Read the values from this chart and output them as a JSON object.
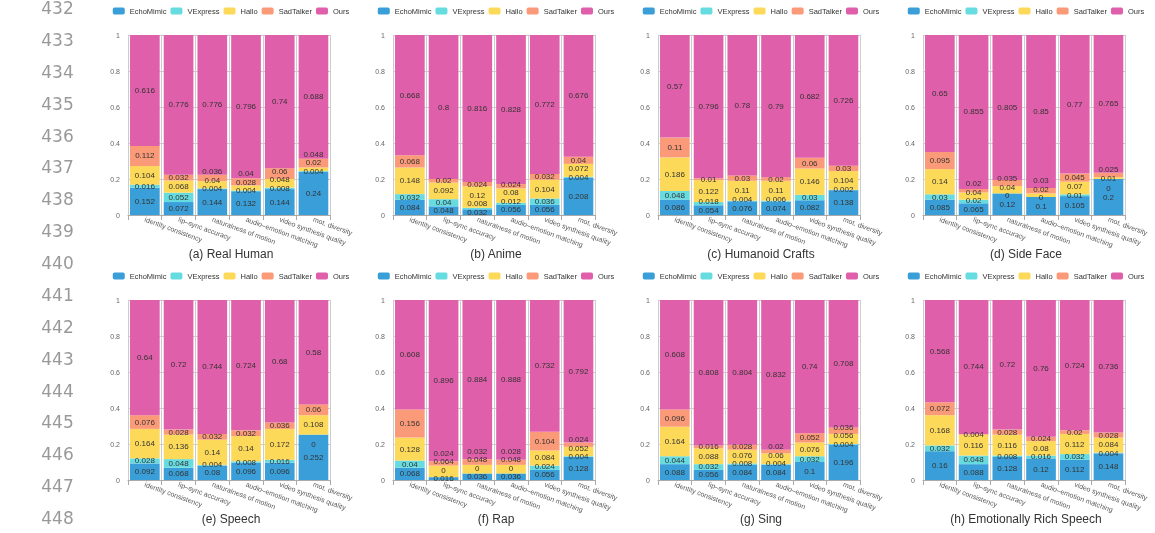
{
  "chart_data": [
    {
      "type": "bar",
      "title": "(a) Real Human",
      "annotations": [
        "432",
        "433",
        "434",
        "435",
        "436",
        "437",
        "438",
        "439",
        "440",
        "441",
        "442",
        "443",
        "444",
        "445",
        "446",
        "447",
        "448"
      ],
      "stacked": true,
      "data_labels": true,
      "grid": true,
      "legend": "top",
      "ylim": [
        0,
        1
      ],
      "yticks": [
        0,
        0.2,
        0.4,
        0.6,
        0.8,
        1
      ],
      "categories": [
        "identity consistency",
        "lip–sync accuracy",
        "naturalness of motion",
        "audio–emotion matching",
        "video synthesis quality",
        "mot. diversity"
      ],
      "series": [
        {
          "name": "EchoMimic",
          "color": "#3a9fd8",
          "values": [
            0.152,
            0.072,
            0.144,
            0.132,
            0.144,
            0.24
          ]
        },
        {
          "name": "VExpress",
          "color": "#66dbe0",
          "values": [
            0.016,
            0.052,
            0.004,
            0.004,
            0.008,
            0.004
          ]
        },
        {
          "name": "Hallo",
          "color": "#fdd95a",
          "values": [
            0.104,
            0.068,
            0.04,
            0.028,
            0.048,
            0.02
          ]
        },
        {
          "name": "SadTalker",
          "color": "#fb9a78",
          "values": [
            0.112,
            0.032,
            0.036,
            0.04,
            0.06,
            0.048
          ]
        },
        {
          "name": "Ours",
          "color": "#e05faa",
          "values": [
            0.616,
            0.776,
            0.776,
            0.796,
            0.74,
            0.688
          ]
        }
      ]
    },
    {
      "type": "bar",
      "title": "(b) Anime",
      "stacked": true,
      "data_labels": true,
      "grid": true,
      "legend": "top",
      "ylim": [
        0,
        1
      ],
      "yticks": [
        0,
        0.2,
        0.4,
        0.6,
        0.8,
        1
      ],
      "categories": [
        "identity consistency",
        "lip–sync accuracy",
        "naturalness of motion",
        "audio–emotion matching",
        "video synthesis quality",
        "mot. diversity"
      ],
      "series": [
        {
          "name": "EchoMimic",
          "color": "#3a9fd8",
          "values": [
            0.084,
            0.048,
            0.032,
            0.056,
            0.056,
            0.208
          ]
        },
        {
          "name": "VExpress",
          "color": "#66dbe0",
          "values": [
            0.032,
            0.04,
            0.008,
            0.012,
            0.036,
            0.004
          ]
        },
        {
          "name": "Hallo",
          "color": "#fdd95a",
          "values": [
            0.148,
            0.092,
            0.12,
            0.08,
            0.104,
            0.072
          ]
        },
        {
          "name": "SadTalker",
          "color": "#fb9a78",
          "values": [
            0.068,
            0.02,
            0.024,
            0.024,
            0.032,
            0.04
          ]
        },
        {
          "name": "Ours",
          "color": "#e05faa",
          "values": [
            0.668,
            0.8,
            0.816,
            0.828,
            0.772,
            0.676
          ]
        }
      ]
    },
    {
      "type": "bar",
      "title": "(c) Humanoid Crafts",
      "stacked": true,
      "data_labels": true,
      "grid": true,
      "legend": "top",
      "ylim": [
        0,
        1
      ],
      "yticks": [
        0,
        0.2,
        0.4,
        0.6,
        0.8,
        1
      ],
      "categories": [
        "identity consistency",
        "lip–sync accuracy",
        "naturalness of motion",
        "audio–emotion matching",
        "video synthesis quality",
        "mot. diversity"
      ],
      "series": [
        {
          "name": "EchoMimic",
          "color": "#3a9fd8",
          "values": [
            0.086,
            0.054,
            0.076,
            0.074,
            0.082,
            0.138
          ]
        },
        {
          "name": "VExpress",
          "color": "#66dbe0",
          "values": [
            0.048,
            0.018,
            0.004,
            0.006,
            0.03,
            0.002
          ]
        },
        {
          "name": "Hallo",
          "color": "#fdd95a",
          "values": [
            0.186,
            0.122,
            0.11,
            0.11,
            0.146,
            0.104
          ]
        },
        {
          "name": "SadTalker",
          "color": "#fb9a78",
          "values": [
            0.11,
            0.01,
            0.03,
            0.02,
            0.06,
            0.03
          ]
        },
        {
          "name": "Ours",
          "color": "#e05faa",
          "values": [
            0.57,
            0.796,
            0.78,
            0.79,
            0.682,
            0.726
          ]
        }
      ]
    },
    {
      "type": "bar",
      "title": "(d) Side Face",
      "stacked": true,
      "data_labels": true,
      "grid": true,
      "legend": "top",
      "ylim": [
        0,
        1
      ],
      "yticks": [
        0,
        0.2,
        0.4,
        0.6,
        0.8,
        1
      ],
      "categories": [
        "identity consistency",
        "lip–sync accuracy",
        "naturalness of motion",
        "audio–emotion matching",
        "video synthesis quality",
        "mot. diversity"
      ],
      "series": [
        {
          "name": "EchoMimic",
          "color": "#3a9fd8",
          "values": [
            0.085,
            0.065,
            0.12,
            0.1,
            0.105,
            0.2
          ]
        },
        {
          "name": "VExpress",
          "color": "#66dbe0",
          "values": [
            0.03,
            0.02,
            0,
            0,
            0.01,
            0
          ]
        },
        {
          "name": "Hallo",
          "color": "#fdd95a",
          "values": [
            0.14,
            0.04,
            0.04,
            0.02,
            0.07,
            0.01
          ]
        },
        {
          "name": "SadTalker",
          "color": "#fb9a78",
          "values": [
            0.095,
            0.02,
            0.035,
            0.03,
            0.045,
            0.025
          ]
        },
        {
          "name": "Ours",
          "color": "#e05faa",
          "values": [
            0.65,
            0.855,
            0.805,
            0.85,
            0.77,
            0.765
          ]
        }
      ]
    },
    {
      "type": "bar",
      "title": "(e) Speech",
      "stacked": true,
      "data_labels": true,
      "grid": true,
      "legend": "top",
      "ylim": [
        0,
        1
      ],
      "yticks": [
        0,
        0.2,
        0.4,
        0.6,
        0.8,
        1
      ],
      "categories": [
        "identity consistency",
        "lip–sync accuracy",
        "naturalness of motion",
        "audio–emotion matching",
        "video synthesis quality",
        "mot. diversity"
      ],
      "series": [
        {
          "name": "EchoMimic",
          "color": "#3a9fd8",
          "values": [
            0.092,
            0.068,
            0.08,
            0.096,
            0.096,
            0.252
          ]
        },
        {
          "name": "VExpress",
          "color": "#66dbe0",
          "values": [
            0.028,
            0.048,
            0.004,
            0.008,
            0.016,
            0
          ]
        },
        {
          "name": "Hallo",
          "color": "#fdd95a",
          "values": [
            0.164,
            0.136,
            0.14,
            0.14,
            0.172,
            0.108
          ]
        },
        {
          "name": "SadTalker",
          "color": "#fb9a78",
          "values": [
            0.076,
            0.028,
            0.032,
            0.032,
            0.036,
            0.06
          ]
        },
        {
          "name": "Ours",
          "color": "#e05faa",
          "values": [
            0.64,
            0.72,
            0.744,
            0.724,
            0.68,
            0.58
          ]
        }
      ]
    },
    {
      "type": "bar",
      "title": "(f) Rap",
      "stacked": true,
      "data_labels": true,
      "grid": true,
      "legend": "top",
      "ylim": [
        0,
        1
      ],
      "yticks": [
        0,
        0.2,
        0.4,
        0.6,
        0.8,
        1
      ],
      "categories": [
        "identity consistency",
        "lip–sync accuracy",
        "naturalness of motion",
        "audio–emotion matching",
        "video synthesis quality",
        "mot. diversity"
      ],
      "series": [
        {
          "name": "EchoMimic",
          "color": "#3a9fd8",
          "values": [
            0.068,
            0.016,
            0.036,
            0.036,
            0.056,
            0.128
          ]
        },
        {
          "name": "VExpress",
          "color": "#66dbe0",
          "values": [
            0.04,
            0,
            0,
            0,
            0.024,
            0.004
          ]
        },
        {
          "name": "Hallo",
          "color": "#fdd95a",
          "values": [
            0.128,
            0.064,
            0.048,
            0.048,
            0.084,
            0.052
          ]
        },
        {
          "name": "SadTalker",
          "color": "#fb9a78",
          "values": [
            0.156,
            0.024,
            0.032,
            0.028,
            0.104,
            0.024
          ]
        },
        {
          "name": "Ours",
          "color": "#e05faa",
          "values": [
            0.608,
            0.896,
            0.884,
            0.888,
            0.732,
            0.792
          ]
        }
      ]
    },
    {
      "type": "bar",
      "title": "(g) Sing",
      "stacked": true,
      "data_labels": true,
      "grid": true,
      "legend": "top",
      "ylim": [
        0,
        1
      ],
      "yticks": [
        0,
        0.2,
        0.4,
        0.6,
        0.8,
        1
      ],
      "categories": [
        "identity consistency",
        "lip–sync accuracy",
        "naturalness of motion",
        "audio–emotion matching",
        "video synthesis quality",
        "mot. diversity"
      ],
      "series": [
        {
          "name": "EchoMimic",
          "color": "#3a9fd8",
          "values": [
            0.088,
            0.056,
            0.084,
            0.084,
            0.1,
            0.196
          ]
        },
        {
          "name": "VExpress",
          "color": "#66dbe0",
          "values": [
            0.044,
            0.032,
            0.008,
            0.004,
            0.032,
            0.004
          ]
        },
        {
          "name": "Hallo",
          "color": "#fdd95a",
          "values": [
            0.164,
            0.088,
            0.076,
            0.06,
            0.076,
            0.056
          ]
        },
        {
          "name": "SadTalker",
          "color": "#fb9a78",
          "values": [
            0.096,
            0.016,
            0.028,
            0.02,
            0.052,
            0.036
          ]
        },
        {
          "name": "Ours",
          "color": "#e05faa",
          "values": [
            0.608,
            0.808,
            0.804,
            0.832,
            0.74,
            0.708
          ]
        }
      ]
    },
    {
      "type": "bar",
      "title": "(h) Emotionally Rich Speech",
      "stacked": true,
      "data_labels": true,
      "grid": true,
      "legend": "top",
      "ylim": [
        0,
        1
      ],
      "yticks": [
        0,
        0.2,
        0.4,
        0.6,
        0.8,
        1
      ],
      "categories": [
        "identity consistency",
        "lip–sync accuracy",
        "naturalness of motion",
        "audio–emotion matching",
        "video synthesis quality",
        "mot. diversity"
      ],
      "series": [
        {
          "name": "EchoMimic",
          "color": "#3a9fd8",
          "values": [
            0.16,
            0.088,
            0.128,
            0.12,
            0.112,
            0.148
          ]
        },
        {
          "name": "VExpress",
          "color": "#66dbe0",
          "values": [
            0.032,
            0.048,
            0.008,
            0.016,
            0.032,
            0.004
          ]
        },
        {
          "name": "Hallo",
          "color": "#fdd95a",
          "values": [
            0.168,
            0.116,
            0.116,
            0.08,
            0.112,
            0.084
          ]
        },
        {
          "name": "SadTalker",
          "color": "#fb9a78",
          "values": [
            0.072,
            0.004,
            0.028,
            0.024,
            0.02,
            0.028
          ]
        },
        {
          "name": "Ours",
          "color": "#e05faa",
          "values": [
            0.568,
            0.744,
            0.72,
            0.76,
            0.724,
            0.736
          ]
        }
      ]
    }
  ]
}
